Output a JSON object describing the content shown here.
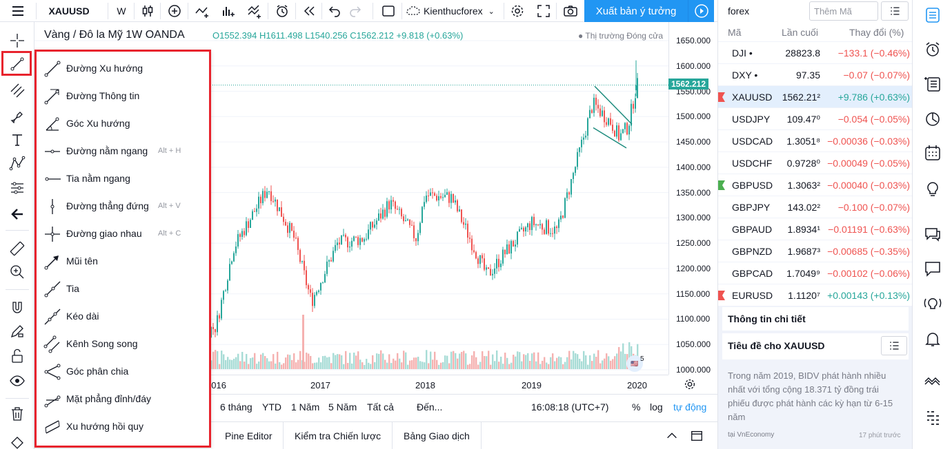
{
  "toolbar": {
    "symbol": "XAUUSD",
    "interval": "W",
    "layout_name": "Kienthucforex",
    "publish_label": "Xuất bản ý tưởng"
  },
  "chart": {
    "title": "Vàng / Đô la Mỹ  1W  OANDA",
    "ohlc": "O1552.394  H1611.498  L1540.256  C1562.212  +9.818 (+0.63%)",
    "market_status": "● Thị trường Đóng cửa",
    "price_tag": "1562.212",
    "volume_badge": "5"
  },
  "chart_data": {
    "type": "candlestick",
    "title": "Vàng / Đô la Mỹ 1W OANDA",
    "y_ticks": [
      "1650.000",
      "1600.000",
      "1550.000",
      "1500.000",
      "1450.000",
      "1400.000",
      "1350.000",
      "1300.000",
      "1250.000",
      "1200.000",
      "1150.000",
      "1100.000",
      "1050.000",
      "1000.000"
    ],
    "x_ticks": [
      "2016",
      "2017",
      "2018",
      "2019",
      "2020"
    ],
    "ylim": [
      1000,
      1650
    ],
    "last_price": 1562.212,
    "approx_close_path": [
      {
        "x": "2016-01",
        "y": 1085
      },
      {
        "x": "2016-03",
        "y": 1240
      },
      {
        "x": "2016-07",
        "y": 1360
      },
      {
        "x": "2016-10",
        "y": 1260
      },
      {
        "x": "2016-12",
        "y": 1135
      },
      {
        "x": "2017-03",
        "y": 1250
      },
      {
        "x": "2017-06",
        "y": 1260
      },
      {
        "x": "2017-09",
        "y": 1330
      },
      {
        "x": "2017-12",
        "y": 1260
      },
      {
        "x": "2018-01",
        "y": 1345
      },
      {
        "x": "2018-04",
        "y": 1340
      },
      {
        "x": "2018-08",
        "y": 1185
      },
      {
        "x": "2018-10",
        "y": 1230
      },
      {
        "x": "2019-01",
        "y": 1290
      },
      {
        "x": "2019-04",
        "y": 1275
      },
      {
        "x": "2019-06",
        "y": 1400
      },
      {
        "x": "2019-08",
        "y": 1525
      },
      {
        "x": "2019-10",
        "y": 1490
      },
      {
        "x": "2019-11",
        "y": 1460
      },
      {
        "x": "2019-12",
        "y": 1480
      },
      {
        "x": "2020-01",
        "y": 1562
      }
    ]
  },
  "range_bar": {
    "r1": "6 tháng",
    "r2": "YTD",
    "r3": "1 Năm",
    "r4": "5 Năm",
    "r5": "Tất cả",
    "goto": "Đến...",
    "clock": "16:08:18 (UTC+7)",
    "pct": "%",
    "log": "log",
    "auto": "tự động"
  },
  "bottom_tabs": {
    "t1": "Pine Editor",
    "t2": "Kiểm tra Chiến lược",
    "t3": "Bảng Giao dịch"
  },
  "drawing_menu": [
    {
      "label": "Đường Xu hướng",
      "hotkey": ""
    },
    {
      "label": "Đường Thông tin",
      "hotkey": ""
    },
    {
      "label": "Góc Xu hướng",
      "hotkey": ""
    },
    {
      "label": "Đường nằm ngang",
      "hotkey": "Alt + H"
    },
    {
      "label": "Tia nằm ngang",
      "hotkey": ""
    },
    {
      "label": "Đường thẳng đứng",
      "hotkey": "Alt + V"
    },
    {
      "label": "Đường giao nhau",
      "hotkey": "Alt + C"
    },
    {
      "label": "Mũi tên",
      "hotkey": ""
    },
    {
      "label": "Tia",
      "hotkey": ""
    },
    {
      "label": "Kéo dài",
      "hotkey": ""
    },
    {
      "label": "Kênh Song song",
      "hotkey": ""
    },
    {
      "label": "Góc phân chia",
      "hotkey": ""
    },
    {
      "label": "Mặt phẳng đỉnh/đáy",
      "hotkey": ""
    },
    {
      "label": "Xu hướng hồi quy",
      "hotkey": ""
    }
  ],
  "watchlist": {
    "name": "forex",
    "search_placeholder": "Thêm Mã",
    "col_symbol": "Mã",
    "col_last": "Lần cuối",
    "col_change": "Thay đổi (%)",
    "rows": [
      {
        "symbol": "DJI •",
        "last": "28823.8",
        "change": "−133.1 (−0.46%)",
        "dir": "neg",
        "flag": ""
      },
      {
        "symbol": "DXY •",
        "last": "97.35",
        "change": "−0.07 (−0.07%)",
        "dir": "neg",
        "flag": ""
      },
      {
        "symbol": "XAUUSD",
        "last": "1562.21²",
        "change": "+9.786 (+0.63%)",
        "dir": "pos",
        "flag": "#ef5350"
      },
      {
        "symbol": "USDJPY",
        "last": "109.47⁰",
        "change": "−0.054 (−0.05%)",
        "dir": "neg",
        "flag": ""
      },
      {
        "symbol": "USDCAD",
        "last": "1.3051⁸",
        "change": "−0.00036 (−0.03%)",
        "dir": "neg",
        "flag": ""
      },
      {
        "symbol": "USDCHF",
        "last": "0.9728⁰",
        "change": "−0.00049 (−0.05%)",
        "dir": "neg",
        "flag": ""
      },
      {
        "symbol": "GBPUSD",
        "last": "1.3063²",
        "change": "−0.00040 (−0.03%)",
        "dir": "neg",
        "flag": "#4caf50"
      },
      {
        "symbol": "GBPJPY",
        "last": "143.02²",
        "change": "−0.100 (−0.07%)",
        "dir": "neg",
        "flag": ""
      },
      {
        "symbol": "GBPAUD",
        "last": "1.8934¹",
        "change": "−0.01191 (−0.63%)",
        "dir": "neg",
        "flag": ""
      },
      {
        "symbol": "GBPNZD",
        "last": "1.9687³",
        "change": "−0.00685 (−0.35%)",
        "dir": "neg",
        "flag": ""
      },
      {
        "symbol": "GBPCAD",
        "last": "1.7049⁹",
        "change": "−0.00102 (−0.06%)",
        "dir": "neg",
        "flag": ""
      },
      {
        "symbol": "EURUSD",
        "last": "1.1120⁷",
        "change": "+0.00143 (+0.13%)",
        "dir": "pos",
        "flag": "#ef5350"
      }
    ]
  },
  "details": {
    "title": "Thông tin chi tiết"
  },
  "news": {
    "title": "Tiêu đề cho XAUUSD",
    "body": "Trong năm 2019, BIDV phát hành nhiều nhất với tổng cộng 18.371 tỷ đồng trái phiếu được phát hành các kỳ hạn từ 6-15 năm",
    "source": "tại VnEconomy",
    "time": "17 phút trước"
  },
  "colors": {
    "accent": "#2196f3",
    "up": "#26a69a",
    "down": "#ef5350",
    "highlight": "#e8232d"
  }
}
